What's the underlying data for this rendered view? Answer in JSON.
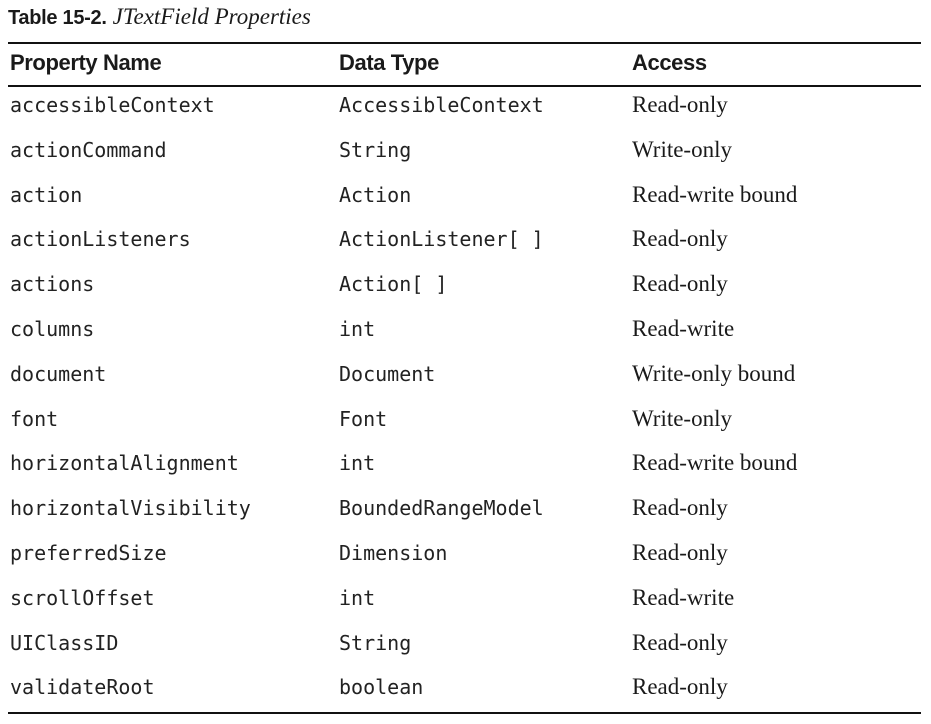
{
  "caption": {
    "label": "Table 15-2.",
    "title": "JTextField Properties"
  },
  "table": {
    "headers": [
      "Property Name",
      "Data Type",
      "Access"
    ],
    "rows": [
      [
        "accessibleContext",
        "AccessibleContext",
        "Read-only"
      ],
      [
        "actionCommand",
        "String",
        "Write-only"
      ],
      [
        "action",
        "Action",
        "Read-write bound"
      ],
      [
        "actionListeners",
        "ActionListener[ ]",
        "Read-only"
      ],
      [
        "actions",
        "Action[ ]",
        "Read-only"
      ],
      [
        "columns",
        "int",
        "Read-write"
      ],
      [
        "document",
        "Document",
        "Write-only bound"
      ],
      [
        "font",
        "Font",
        "Write-only"
      ],
      [
        "horizontalAlignment",
        "int",
        "Read-write bound"
      ],
      [
        "horizontalVisibility",
        "BoundedRangeModel",
        "Read-only"
      ],
      [
        "preferredSize",
        "Dimension",
        "Read-only"
      ],
      [
        "scrollOffset",
        "int",
        "Read-write"
      ],
      [
        "UIClassID",
        "String",
        "Read-only"
      ],
      [
        "validateRoot",
        "boolean",
        "Read-only"
      ]
    ]
  }
}
